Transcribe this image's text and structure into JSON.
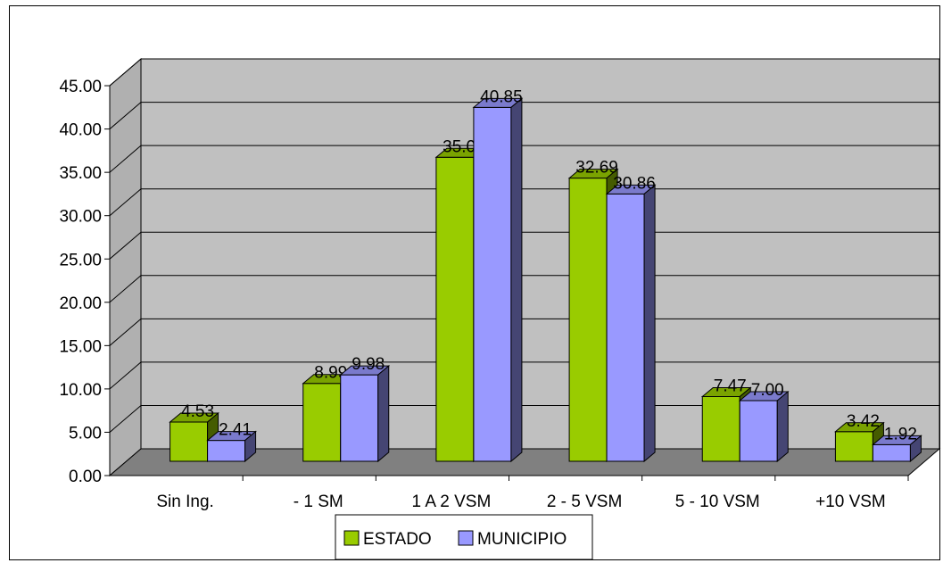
{
  "chart_data": {
    "type": "bar",
    "categories": [
      "Sin Ing.",
      "- 1 SM",
      "1 A 2 VSM",
      "2 - 5 VSM",
      "5 - 10 VSM",
      "+10 VSM"
    ],
    "series": [
      {
        "name": "ESTADO",
        "values": [
          4.53,
          8.99,
          35.09,
          32.69,
          7.47,
          3.42
        ],
        "color": "#99cc00"
      },
      {
        "name": "MUNICIPIO",
        "values": [
          2.41,
          9.98,
          40.85,
          30.86,
          7.0,
          1.92
        ],
        "color": "#9999ff"
      }
    ],
    "value_labels": [
      [
        "4.53",
        "8.99",
        "35.09",
        "32.69",
        "7.47",
        "3.42"
      ],
      [
        "2.41",
        "9.98",
        "40.85",
        "30.86",
        "7.00",
        "1.92"
      ]
    ],
    "y_ticks": [
      "0.00",
      "5.00",
      "10.00",
      "15.00",
      "20.00",
      "25.00",
      "30.00",
      "35.00",
      "40.00",
      "45.00"
    ],
    "ylim": [
      0,
      45
    ],
    "grid": true,
    "legend_position": "bottom",
    "style": "3d-clustered-column",
    "wall_color": "#c0c0c0",
    "floor_color": "#808080"
  }
}
